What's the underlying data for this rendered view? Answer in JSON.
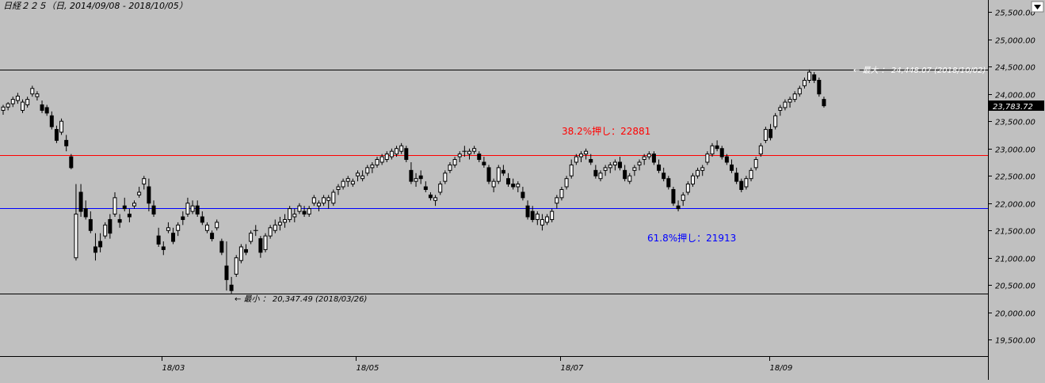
{
  "chart_data": {
    "type": "candlestick",
    "title": "日経２２５（日, 2014/09/08 - 2018/10/05）",
    "ylim": [
      19200,
      25720
    ],
    "y_ticks": [
      {
        "value": 19500,
        "label": "19,500.00"
      },
      {
        "value": 20000,
        "label": "20,000.00"
      },
      {
        "value": 20500,
        "label": "20,500.00"
      },
      {
        "value": 21000,
        "label": "21,000.00"
      },
      {
        "value": 21500,
        "label": "21,500.00"
      },
      {
        "value": 22000,
        "label": "22,000.00"
      },
      {
        "value": 22500,
        "label": "22,500.00"
      },
      {
        "value": 23000,
        "label": "23,000.00"
      },
      {
        "value": 23500,
        "label": "23,500.00"
      },
      {
        "value": 24000,
        "label": "24,000.00"
      },
      {
        "value": 24500,
        "label": "24,500.00"
      },
      {
        "value": 25000,
        "label": "25,000.00"
      },
      {
        "value": 25500,
        "label": "25,500.00"
      }
    ],
    "x_labels": [
      {
        "index": 33,
        "label": "18/03"
      },
      {
        "index": 73,
        "label": "18/05"
      },
      {
        "index": 115,
        "label": "18/07"
      },
      {
        "index": 158,
        "label": "18/09"
      }
    ],
    "last_price": {
      "value": 23783.72,
      "label": "23,783.72"
    },
    "horizontal_lines": [
      {
        "value": 24448.07,
        "color": "#000000"
      },
      {
        "value": 20347.49,
        "color": "#000000"
      },
      {
        "value": 22881,
        "color": "#ff0000"
      },
      {
        "value": 21913,
        "color": "#0000ff"
      }
    ],
    "annotations": {
      "retracement_382": {
        "text": "38.2%押し：22881",
        "color": "#ff0000"
      },
      "retracement_618": {
        "text": "61.8%押し：21913",
        "color": "#0000ff"
      },
      "max_label": {
        "text": "← 最大 ： 24,448.07 (2018/10/02)"
      },
      "min_label": {
        "text": "← 最小 ： 20,347.49 (2018/03/26)"
      }
    },
    "candles": [
      [
        23700,
        23800,
        23620,
        23760
      ],
      [
        23760,
        23850,
        23700,
        23820
      ],
      [
        23820,
        23950,
        23760,
        23900
      ],
      [
        23880,
        24020,
        23820,
        23960
      ],
      [
        23700,
        23900,
        23650,
        23850
      ],
      [
        23800,
        23950,
        23750,
        23900
      ],
      [
        24000,
        24150,
        23950,
        24100
      ],
      [
        23950,
        24050,
        23880,
        24000
      ],
      [
        23800,
        23880,
        23650,
        23700
      ],
      [
        23750,
        23800,
        23600,
        23650
      ],
      [
        23600,
        23680,
        23350,
        23400
      ],
      [
        23350,
        23420,
        23100,
        23150
      ],
      [
        23300,
        23550,
        23250,
        23500
      ],
      [
        23150,
        23250,
        22950,
        23050
      ],
      [
        22850,
        22900,
        22620,
        22650
      ],
      [
        21000,
        22350,
        20950,
        21800
      ],
      [
        22200,
        22350,
        21750,
        21850
      ],
      [
        21900,
        22050,
        21700,
        21750
      ],
      [
        21700,
        21850,
        21450,
        21500
      ],
      [
        21200,
        21450,
        20950,
        21100
      ],
      [
        21300,
        21450,
        21100,
        21200
      ],
      [
        21400,
        21650,
        21350,
        21600
      ],
      [
        21700,
        21800,
        21350,
        21450
      ],
      [
        21800,
        22200,
        21750,
        22100
      ],
      [
        21700,
        21800,
        21550,
        21650
      ],
      [
        21950,
        22100,
        21850,
        21900
      ],
      [
        21800,
        21900,
        21650,
        21750
      ],
      [
        21950,
        22050,
        21900,
        22000
      ],
      [
        22150,
        22300,
        22100,
        22200
      ],
      [
        22350,
        22500,
        22250,
        22450
      ],
      [
        22300,
        22450,
        21850,
        22000
      ],
      [
        21950,
        22050,
        21750,
        21800
      ],
      [
        21400,
        21550,
        21200,
        21250
      ],
      [
        21200,
        21300,
        21050,
        21150
      ],
      [
        21500,
        21650,
        21450,
        21550
      ],
      [
        21450,
        21550,
        21250,
        21300
      ],
      [
        21500,
        21650,
        21400,
        21600
      ],
      [
        21750,
        21850,
        21600,
        21700
      ],
      [
        21800,
        22100,
        21750,
        22000
      ],
      [
        21850,
        22050,
        21800,
        21950
      ],
      [
        21950,
        22050,
        21750,
        21800
      ],
      [
        21750,
        21850,
        21600,
        21650
      ],
      [
        21500,
        21650,
        21450,
        21600
      ],
      [
        21450,
        21500,
        21300,
        21350
      ],
      [
        21550,
        21700,
        21500,
        21650
      ],
      [
        21300,
        21350,
        21050,
        21100
      ],
      [
        20850,
        21300,
        20400,
        20600
      ],
      [
        20500,
        20650,
        20347.49,
        20400
      ],
      [
        20700,
        21050,
        20650,
        21000
      ],
      [
        20950,
        21250,
        20900,
        21200
      ],
      [
        21150,
        21250,
        21050,
        21100
      ],
      [
        21300,
        21500,
        21250,
        21450
      ],
      [
        21500,
        21600,
        21400,
        21500
      ],
      [
        21350,
        21400,
        21000,
        21100
      ],
      [
        21150,
        21450,
        21100,
        21400
      ],
      [
        21400,
        21600,
        21350,
        21550
      ],
      [
        21500,
        21700,
        21450,
        21600
      ],
      [
        21600,
        21750,
        21500,
        21650
      ],
      [
        21650,
        21800,
        21550,
        21700
      ],
      [
        21700,
        21950,
        21650,
        21900
      ],
      [
        21750,
        21900,
        21650,
        21800
      ],
      [
        21850,
        22000,
        21800,
        21950
      ],
      [
        21850,
        21950,
        21750,
        21800
      ],
      [
        21800,
        21950,
        21750,
        21900
      ],
      [
        22000,
        22150,
        21950,
        22100
      ],
      [
        21950,
        22050,
        21850,
        22000
      ],
      [
        22000,
        22150,
        21950,
        22100
      ],
      [
        22050,
        22150,
        21900,
        22100
      ],
      [
        22000,
        22250,
        21950,
        22200
      ],
      [
        22250,
        22350,
        22150,
        22300
      ],
      [
        22300,
        22450,
        22250,
        22400
      ],
      [
        22400,
        22500,
        22300,
        22450
      ],
      [
        22350,
        22450,
        22300,
        22400
      ],
      [
        22500,
        22600,
        22400,
        22550
      ],
      [
        22450,
        22600,
        22400,
        22500
      ],
      [
        22550,
        22700,
        22500,
        22650
      ],
      [
        22650,
        22750,
        22550,
        22700
      ],
      [
        22700,
        22850,
        22650,
        22800
      ],
      [
        22750,
        22900,
        22700,
        22850
      ],
      [
        22800,
        22950,
        22750,
        22900
      ],
      [
        22850,
        23000,
        22800,
        22950
      ],
      [
        22900,
        23050,
        22850,
        23000
      ],
      [
        22950,
        23100,
        22900,
        23050
      ],
      [
        23000,
        23050,
        22750,
        22800
      ],
      [
        22600,
        22750,
        22350,
        22400
      ],
      [
        22400,
        22550,
        22300,
        22450
      ],
      [
        22500,
        22600,
        22350,
        22450
      ],
      [
        22300,
        22400,
        22200,
        22250
      ],
      [
        22150,
        22200,
        22050,
        22100
      ],
      [
        22050,
        22150,
        21950,
        22100
      ],
      [
        22200,
        22400,
        22150,
        22350
      ],
      [
        22400,
        22600,
        22350,
        22550
      ],
      [
        22600,
        22750,
        22550,
        22700
      ],
      [
        22700,
        22850,
        22650,
        22800
      ],
      [
        22850,
        22950,
        22750,
        22900
      ],
      [
        22950,
        23050,
        22850,
        22950
      ],
      [
        22900,
        23000,
        22800,
        22950
      ],
      [
        22950,
        23050,
        22900,
        23000
      ],
      [
        22900,
        22950,
        22750,
        22800
      ],
      [
        22750,
        22850,
        22650,
        22700
      ],
      [
        22650,
        22700,
        22350,
        22400
      ],
      [
        22300,
        22450,
        22200,
        22400
      ],
      [
        22400,
        22700,
        22350,
        22650
      ],
      [
        22600,
        22700,
        22500,
        22550
      ],
      [
        22450,
        22550,
        22300,
        22350
      ],
      [
        22350,
        22450,
        22250,
        22300
      ],
      [
        22300,
        22400,
        22200,
        22350
      ],
      [
        22200,
        22300,
        22050,
        22100
      ],
      [
        21950,
        22050,
        21700,
        21750
      ],
      [
        21850,
        21950,
        21650,
        21700
      ],
      [
        21700,
        21850,
        21600,
        21800
      ],
      [
        21600,
        21800,
        21500,
        21700
      ],
      [
        21650,
        21800,
        21600,
        21750
      ],
      [
        21700,
        21900,
        21650,
        21850
      ],
      [
        22000,
        22150,
        21900,
        22100
      ],
      [
        22100,
        22300,
        22050,
        22250
      ],
      [
        22300,
        22500,
        22250,
        22450
      ],
      [
        22500,
        22800,
        22450,
        22700
      ],
      [
        22750,
        22900,
        22700,
        22850
      ],
      [
        22850,
        22950,
        22750,
        22900
      ],
      [
        22900,
        23000,
        22800,
        22950
      ],
      [
        22800,
        22900,
        22700,
        22750
      ],
      [
        22600,
        22700,
        22450,
        22500
      ],
      [
        22450,
        22600,
        22400,
        22550
      ],
      [
        22600,
        22700,
        22500,
        22650
      ],
      [
        22650,
        22750,
        22550,
        22700
      ],
      [
        22700,
        22800,
        22600,
        22750
      ],
      [
        22750,
        22850,
        22600,
        22650
      ],
      [
        22600,
        22700,
        22400,
        22450
      ],
      [
        22400,
        22550,
        22350,
        22500
      ],
      [
        22600,
        22700,
        22500,
        22650
      ],
      [
        22700,
        22800,
        22600,
        22750
      ],
      [
        22800,
        22900,
        22700,
        22850
      ],
      [
        22850,
        22950,
        22800,
        22900
      ],
      [
        22900,
        22950,
        22700,
        22750
      ],
      [
        22700,
        22800,
        22550,
        22600
      ],
      [
        22550,
        22650,
        22400,
        22450
      ],
      [
        22450,
        22500,
        22250,
        22300
      ],
      [
        22250,
        22300,
        21950,
        22000
      ],
      [
        21950,
        22050,
        21850,
        21900
      ],
      [
        22050,
        22200,
        21950,
        22150
      ],
      [
        22200,
        22400,
        22150,
        22350
      ],
      [
        22350,
        22550,
        22300,
        22500
      ],
      [
        22500,
        22650,
        22450,
        22600
      ],
      [
        22600,
        22700,
        22500,
        22650
      ],
      [
        22750,
        22950,
        22700,
        22900
      ],
      [
        22900,
        23100,
        22850,
        23050
      ],
      [
        23050,
        23150,
        22950,
        23000
      ],
      [
        23000,
        23050,
        22800,
        22850
      ],
      [
        22850,
        22900,
        22700,
        22750
      ],
      [
        22700,
        22800,
        22550,
        22600
      ],
      [
        22550,
        22650,
        22350,
        22400
      ],
      [
        22400,
        22450,
        22200,
        22250
      ],
      [
        22300,
        22500,
        22250,
        22450
      ],
      [
        22450,
        22650,
        22400,
        22600
      ],
      [
        22650,
        22850,
        22600,
        22800
      ],
      [
        22900,
        23100,
        22850,
        23050
      ],
      [
        23150,
        23400,
        23100,
        23350
      ],
      [
        23350,
        23450,
        23150,
        23200
      ],
      [
        23400,
        23650,
        23350,
        23600
      ],
      [
        23700,
        23800,
        23600,
        23750
      ],
      [
        23750,
        23900,
        23700,
        23850
      ],
      [
        23850,
        23950,
        23750,
        23900
      ],
      [
        23900,
        24050,
        23850,
        24000
      ],
      [
        24000,
        24150,
        23950,
        24100
      ],
      [
        24150,
        24300,
        24100,
        24250
      ],
      [
        24250,
        24448.07,
        24200,
        24400
      ],
      [
        24350,
        24400,
        24200,
        24250
      ],
      [
        24250,
        24300,
        23950,
        24000
      ],
      [
        23900,
        23950,
        23750,
        23783.72
      ]
    ]
  }
}
